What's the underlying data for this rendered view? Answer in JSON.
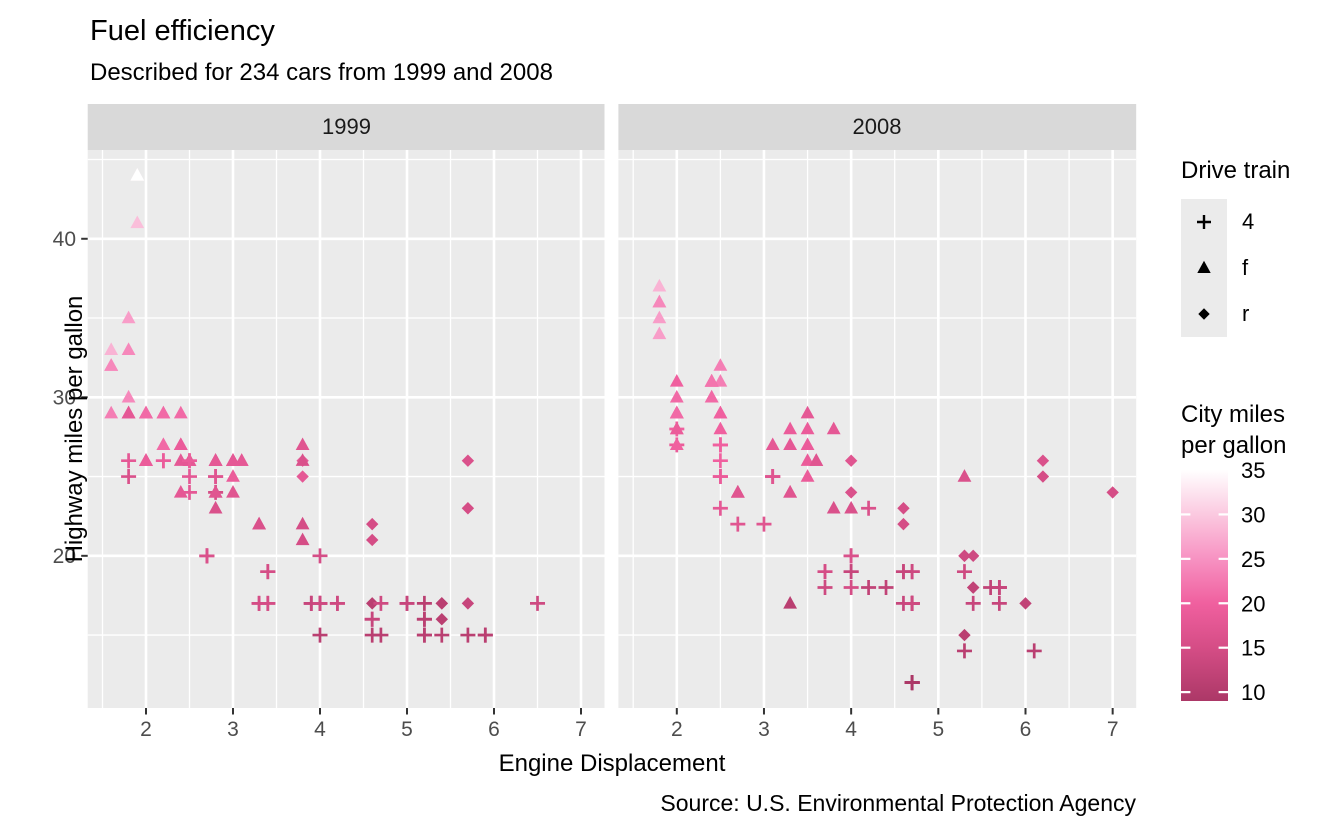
{
  "chart_data": {
    "type": "scatter",
    "title": "Fuel efficiency",
    "subtitle": "Described for 234 cars from 1999 and 2008",
    "caption": "Source: U.S. Environmental Protection Agency",
    "xlabel": "Engine Displacement",
    "ylabel": "Highway miles per gallon",
    "facets": [
      "1999",
      "2008"
    ],
    "x_ticks": [
      2,
      3,
      4,
      5,
      6,
      7
    ],
    "x_minor": [
      1.5,
      2.5,
      3.5,
      4.5,
      5.5,
      6.5
    ],
    "y_ticks": [
      20,
      30,
      40
    ],
    "y_minor": [
      15,
      25,
      35,
      45
    ],
    "xlim": [
      1.33,
      7.27
    ],
    "ylim": [
      10.4,
      45.6
    ],
    "theme": {
      "panel_bg": "#EBEBEB",
      "strip_bg": "#D9D9D9",
      "grid": "#FFFFFF",
      "tick_label": "#4D4D4D",
      "tick_mark": "#333333",
      "text": "#000000",
      "legend_key_bg": "#EBEBEB"
    },
    "shape_legend": {
      "title": "Drive train",
      "entries": [
        {
          "shape": "plus",
          "label": "4"
        },
        {
          "shape": "triangle",
          "label": "f"
        },
        {
          "shape": "diamond",
          "label": "r"
        }
      ]
    },
    "color_legend": {
      "title_lines": [
        "City miles",
        "per gallon"
      ],
      "ticks": [
        35,
        30,
        25,
        20,
        15,
        10
      ],
      "domain": [
        9,
        35
      ],
      "stops": [
        [
          9,
          "#AC3867"
        ],
        [
          15,
          "#D54D86"
        ],
        [
          20,
          "#F0609F"
        ],
        [
          25,
          "#F792C2"
        ],
        [
          30,
          "#FBC9E0"
        ],
        [
          35,
          "#FFFFFF"
        ]
      ]
    },
    "series_key": [
      "displ",
      "hwy",
      "cty",
      "drv"
    ],
    "points_1999": [
      [
        1.8,
        29,
        18,
        "f"
      ],
      [
        1.8,
        29,
        21,
        "f"
      ],
      [
        2.8,
        26,
        16,
        "f"
      ],
      [
        2.8,
        26,
        18,
        "f"
      ],
      [
        1.8,
        26,
        18,
        "4"
      ],
      [
        1.8,
        25,
        16,
        "4"
      ],
      [
        2.8,
        25,
        15,
        "4"
      ],
      [
        2.8,
        25,
        17,
        "4"
      ],
      [
        2.8,
        24,
        15,
        "4"
      ],
      [
        5.7,
        17,
        13,
        "r"
      ],
      [
        5.7,
        26,
        16,
        "r"
      ],
      [
        5.7,
        23,
        15,
        "r"
      ],
      [
        5.7,
        15,
        11,
        "4"
      ],
      [
        6.5,
        17,
        14,
        "4"
      ],
      [
        2.4,
        27,
        19,
        "f"
      ],
      [
        3.1,
        26,
        18,
        "f"
      ],
      [
        2.4,
        24,
        18,
        "f"
      ],
      [
        3.0,
        24,
        17,
        "f"
      ],
      [
        3.3,
        22,
        16,
        "f"
      ],
      [
        3.3,
        22,
        16,
        "f"
      ],
      [
        3.8,
        22,
        15,
        "f"
      ],
      [
        3.8,
        21,
        15,
        "f"
      ],
      [
        3.9,
        17,
        13,
        "4"
      ],
      [
        3.9,
        17,
        14,
        "4"
      ],
      [
        5.2,
        17,
        11,
        "4"
      ],
      [
        5.2,
        15,
        11,
        "4"
      ],
      [
        3.9,
        17,
        13,
        "4"
      ],
      [
        5.2,
        16,
        11,
        "4"
      ],
      [
        5.9,
        15,
        11,
        "4"
      ],
      [
        5.2,
        15,
        11,
        "4"
      ],
      [
        5.2,
        16,
        11,
        "4"
      ],
      [
        5.9,
        15,
        11,
        "4"
      ],
      [
        4.6,
        17,
        11,
        "r"
      ],
      [
        5.4,
        17,
        11,
        "r"
      ],
      [
        4.0,
        17,
        14,
        "4"
      ],
      [
        4.0,
        17,
        15,
        "4"
      ],
      [
        4.0,
        17,
        14,
        "4"
      ],
      [
        5.0,
        17,
        13,
        "4"
      ],
      [
        4.2,
        17,
        14,
        "4"
      ],
      [
        4.2,
        17,
        14,
        "4"
      ],
      [
        4.6,
        16,
        13,
        "4"
      ],
      [
        4.6,
        16,
        13,
        "4"
      ],
      [
        5.4,
        15,
        11,
        "4"
      ],
      [
        3.8,
        26,
        18,
        "r"
      ],
      [
        3.8,
        25,
        18,
        "r"
      ],
      [
        4.6,
        21,
        15,
        "r"
      ],
      [
        4.6,
        22,
        15,
        "r"
      ],
      [
        1.6,
        33,
        28,
        "f"
      ],
      [
        1.6,
        32,
        24,
        "f"
      ],
      [
        1.6,
        32,
        25,
        "f"
      ],
      [
        1.6,
        29,
        23,
        "f"
      ],
      [
        1.6,
        32,
        24,
        "f"
      ],
      [
        2.4,
        26,
        18,
        "f"
      ],
      [
        2.4,
        27,
        18,
        "f"
      ],
      [
        2.5,
        26,
        18,
        "f"
      ],
      [
        2.5,
        26,
        18,
        "f"
      ],
      [
        2.0,
        26,
        19,
        "f"
      ],
      [
        2.0,
        29,
        19,
        "f"
      ],
      [
        4.0,
        20,
        15,
        "4"
      ],
      [
        4.7,
        17,
        14,
        "4"
      ],
      [
        4.0,
        15,
        11,
        "4"
      ],
      [
        4.6,
        15,
        11,
        "4"
      ],
      [
        5.4,
        17,
        11,
        "r"
      ],
      [
        5.4,
        16,
        11,
        "r"
      ],
      [
        4.0,
        17,
        14,
        "4"
      ],
      [
        5.0,
        17,
        13,
        "4"
      ],
      [
        2.4,
        29,
        21,
        "f"
      ],
      [
        2.4,
        27,
        19,
        "f"
      ],
      [
        3.0,
        26,
        18,
        "f"
      ],
      [
        3.0,
        25,
        19,
        "f"
      ],
      [
        3.3,
        17,
        14,
        "4"
      ],
      [
        3.3,
        17,
        15,
        "4"
      ],
      [
        3.1,
        26,
        18,
        "f"
      ],
      [
        3.8,
        26,
        16,
        "f"
      ],
      [
        3.8,
        27,
        17,
        "f"
      ],
      [
        2.5,
        25,
        18,
        "4"
      ],
      [
        2.5,
        24,
        18,
        "4"
      ],
      [
        2.2,
        26,
        21,
        "4"
      ],
      [
        2.2,
        26,
        19,
        "4"
      ],
      [
        2.5,
        26,
        19,
        "4"
      ],
      [
        2.5,
        26,
        19,
        "4"
      ],
      [
        2.7,
        20,
        15,
        "4"
      ],
      [
        2.7,
        20,
        16,
        "4"
      ],
      [
        3.4,
        19,
        15,
        "4"
      ],
      [
        3.4,
        17,
        15,
        "4"
      ],
      [
        2.2,
        29,
        21,
        "f"
      ],
      [
        2.2,
        27,
        21,
        "f"
      ],
      [
        3.0,
        26,
        18,
        "f"
      ],
      [
        3.0,
        26,
        18,
        "f"
      ],
      [
        2.2,
        27,
        21,
        "f"
      ],
      [
        2.2,
        29,
        21,
        "f"
      ],
      [
        3.0,
        26,
        18,
        "f"
      ],
      [
        3.0,
        26,
        18,
        "f"
      ],
      [
        1.8,
        30,
        24,
        "f"
      ],
      [
        1.8,
        33,
        24,
        "f"
      ],
      [
        1.8,
        35,
        26,
        "f"
      ],
      [
        4.7,
        15,
        11,
        "4"
      ],
      [
        2.7,
        20,
        15,
        "4"
      ],
      [
        2.7,
        20,
        16,
        "4"
      ],
      [
        3.4,
        17,
        15,
        "4"
      ],
      [
        3.4,
        19,
        15,
        "4"
      ],
      [
        2.0,
        29,
        21,
        "f"
      ],
      [
        2.0,
        26,
        19,
        "f"
      ],
      [
        2.8,
        24,
        17,
        "f"
      ],
      [
        1.9,
        44,
        33,
        "f"
      ],
      [
        2.0,
        29,
        21,
        "f"
      ],
      [
        2.0,
        26,
        19,
        "f"
      ],
      [
        2.8,
        23,
        16,
        "f"
      ],
      [
        2.8,
        24,
        17,
        "f"
      ],
      [
        1.9,
        44,
        35,
        "f"
      ],
      [
        1.9,
        41,
        29,
        "f"
      ],
      [
        2.0,
        29,
        21,
        "f"
      ],
      [
        2.0,
        26,
        19,
        "f"
      ],
      [
        1.8,
        29,
        21,
        "f"
      ],
      [
        1.8,
        29,
        18,
        "f"
      ],
      [
        2.8,
        26,
        16,
        "f"
      ],
      [
        2.8,
        26,
        18,
        "f"
      ]
    ],
    "points_2008": [
      [
        2.0,
        31,
        20,
        "f"
      ],
      [
        2.0,
        30,
        21,
        "f"
      ],
      [
        3.1,
        27,
        18,
        "f"
      ],
      [
        2.0,
        28,
        20,
        "4"
      ],
      [
        2.0,
        27,
        19,
        "4"
      ],
      [
        3.1,
        25,
        17,
        "4"
      ],
      [
        3.1,
        25,
        15,
        "4"
      ],
      [
        3.1,
        25,
        17,
        "4"
      ],
      [
        4.2,
        23,
        16,
        "4"
      ],
      [
        5.3,
        20,
        14,
        "r"
      ],
      [
        5.3,
        15,
        11,
        "r"
      ],
      [
        5.3,
        20,
        14,
        "r"
      ],
      [
        6.0,
        17,
        12,
        "r"
      ],
      [
        6.2,
        26,
        16,
        "r"
      ],
      [
        6.2,
        25,
        15,
        "r"
      ],
      [
        7.0,
        24,
        15,
        "r"
      ],
      [
        5.3,
        19,
        14,
        "4"
      ],
      [
        5.3,
        14,
        11,
        "4"
      ],
      [
        2.4,
        30,
        22,
        "f"
      ],
      [
        3.5,
        29,
        18,
        "f"
      ],
      [
        3.6,
        26,
        17,
        "f"
      ],
      [
        3.3,
        24,
        17,
        "f"
      ],
      [
        3.3,
        24,
        17,
        "f"
      ],
      [
        3.3,
        17,
        11,
        "f"
      ],
      [
        3.8,
        23,
        16,
        "f"
      ],
      [
        4.0,
        23,
        16,
        "f"
      ],
      [
        3.7,
        19,
        15,
        "4"
      ],
      [
        3.7,
        18,
        14,
        "4"
      ],
      [
        4.7,
        19,
        14,
        "4"
      ],
      [
        4.7,
        19,
        14,
        "4"
      ],
      [
        4.7,
        12,
        9,
        "4"
      ],
      [
        4.7,
        17,
        13,
        "4"
      ],
      [
        4.7,
        12,
        9,
        "4"
      ],
      [
        4.7,
        17,
        13,
        "4"
      ],
      [
        5.7,
        18,
        13,
        "4"
      ],
      [
        4.7,
        17,
        13,
        "4"
      ],
      [
        4.7,
        12,
        9,
        "4"
      ],
      [
        4.7,
        17,
        13,
        "4"
      ],
      [
        4.7,
        12,
        9,
        "4"
      ],
      [
        4.7,
        17,
        13,
        "4"
      ],
      [
        4.7,
        17,
        13,
        "4"
      ],
      [
        5.7,
        17,
        13,
        "4"
      ],
      [
        5.4,
        18,
        12,
        "r"
      ],
      [
        4.0,
        19,
        13,
        "4"
      ],
      [
        4.6,
        19,
        13,
        "4"
      ],
      [
        4.6,
        17,
        13,
        "4"
      ],
      [
        5.4,
        17,
        13,
        "4"
      ],
      [
        4.0,
        26,
        17,
        "r"
      ],
      [
        4.0,
        24,
        16,
        "r"
      ],
      [
        4.6,
        23,
        15,
        "r"
      ],
      [
        4.6,
        22,
        15,
        "r"
      ],
      [
        5.4,
        20,
        14,
        "r"
      ],
      [
        1.8,
        34,
        26,
        "f"
      ],
      [
        1.8,
        36,
        25,
        "f"
      ],
      [
        1.8,
        36,
        24,
        "f"
      ],
      [
        2.0,
        29,
        21,
        "f"
      ],
      [
        2.4,
        30,
        21,
        "f"
      ],
      [
        2.4,
        31,
        21,
        "f"
      ],
      [
        3.3,
        28,
        19,
        "f"
      ],
      [
        2.0,
        28,
        20,
        "f"
      ],
      [
        2.0,
        27,
        20,
        "f"
      ],
      [
        2.7,
        24,
        17,
        "f"
      ],
      [
        2.7,
        24,
        16,
        "f"
      ],
      [
        2.7,
        24,
        17,
        "f"
      ],
      [
        3.0,
        22,
        17,
        "4"
      ],
      [
        3.7,
        19,
        15,
        "4"
      ],
      [
        4.7,
        12,
        9,
        "4"
      ],
      [
        4.7,
        19,
        14,
        "4"
      ],
      [
        5.7,
        18,
        13,
        "4"
      ],
      [
        6.1,
        14,
        11,
        "4"
      ],
      [
        4.2,
        18,
        12,
        "4"
      ],
      [
        4.4,
        18,
        12,
        "4"
      ],
      [
        5.4,
        18,
        12,
        "r"
      ],
      [
        4.0,
        19,
        13,
        "4"
      ],
      [
        4.6,
        19,
        13,
        "4"
      ],
      [
        2.5,
        31,
        23,
        "f"
      ],
      [
        2.5,
        32,
        23,
        "f"
      ],
      [
        3.5,
        27,
        19,
        "f"
      ],
      [
        3.5,
        26,
        19,
        "f"
      ],
      [
        3.5,
        25,
        19,
        "f"
      ],
      [
        4.0,
        20,
        14,
        "4"
      ],
      [
        5.6,
        18,
        12,
        "4"
      ],
      [
        3.8,
        28,
        18,
        "f"
      ],
      [
        5.3,
        25,
        16,
        "f"
      ],
      [
        2.5,
        27,
        20,
        "4"
      ],
      [
        2.5,
        25,
        19,
        "4"
      ],
      [
        2.5,
        26,
        20,
        "4"
      ],
      [
        2.5,
        23,
        18,
        "4"
      ],
      [
        2.5,
        25,
        20,
        "4"
      ],
      [
        2.5,
        27,
        20,
        "4"
      ],
      [
        2.5,
        25,
        19,
        "4"
      ],
      [
        2.5,
        27,
        20,
        "4"
      ],
      [
        4.0,
        20,
        16,
        "4"
      ],
      [
        4.7,
        17,
        14,
        "4"
      ],
      [
        2.4,
        31,
        21,
        "f"
      ],
      [
        2.4,
        31,
        21,
        "f"
      ],
      [
        3.5,
        28,
        19,
        "f"
      ],
      [
        2.4,
        31,
        21,
        "f"
      ],
      [
        2.4,
        31,
        22,
        "f"
      ],
      [
        3.3,
        27,
        18,
        "f"
      ],
      [
        1.8,
        37,
        28,
        "f"
      ],
      [
        1.8,
        35,
        26,
        "f"
      ],
      [
        5.7,
        18,
        13,
        "4"
      ],
      [
        2.7,
        22,
        17,
        "4"
      ],
      [
        4.0,
        18,
        15,
        "4"
      ],
      [
        4.0,
        20,
        16,
        "4"
      ],
      [
        2.0,
        29,
        21,
        "f"
      ],
      [
        2.0,
        29,
        22,
        "f"
      ],
      [
        2.0,
        29,
        22,
        "f"
      ],
      [
        2.0,
        29,
        21,
        "f"
      ],
      [
        2.5,
        29,
        21,
        "f"
      ],
      [
        2.5,
        29,
        21,
        "f"
      ],
      [
        2.5,
        28,
        20,
        "f"
      ],
      [
        2.5,
        29,
        20,
        "f"
      ],
      [
        2.0,
        28,
        19,
        "f"
      ],
      [
        2.0,
        29,
        21,
        "f"
      ],
      [
        3.6,
        26,
        17,
        "f"
      ]
    ]
  }
}
